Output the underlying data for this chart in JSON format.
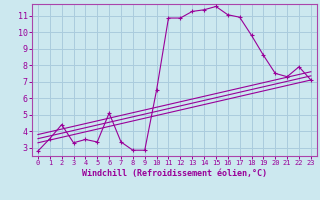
{
  "xlabel": "Windchill (Refroidissement éolien,°C)",
  "bg_color": "#cce8ef",
  "grid_color": "#aaccdd",
  "line_color": "#990099",
  "spine_color": "#aa44aa",
  "xlim": [
    -0.5,
    23.5
  ],
  "ylim": [
    2.5,
    11.7
  ],
  "xticks": [
    0,
    1,
    2,
    3,
    4,
    5,
    6,
    7,
    8,
    9,
    10,
    11,
    12,
    13,
    14,
    15,
    16,
    17,
    18,
    19,
    20,
    21,
    22,
    23
  ],
  "yticks": [
    3,
    4,
    5,
    6,
    7,
    8,
    9,
    10,
    11
  ],
  "curve1_x": [
    0,
    1,
    2,
    3,
    4,
    5,
    6,
    7,
    8,
    9,
    10,
    11,
    12,
    13,
    14,
    15,
    16,
    17,
    18,
    19,
    20,
    21,
    22,
    23
  ],
  "curve1_y": [
    2.8,
    3.55,
    4.4,
    3.3,
    3.5,
    3.35,
    5.1,
    3.35,
    2.85,
    2.85,
    6.5,
    10.85,
    10.85,
    11.25,
    11.35,
    11.55,
    11.05,
    10.9,
    9.8,
    8.6,
    7.5,
    7.3,
    7.9,
    7.1
  ],
  "line2_x": [
    0,
    23
  ],
  "line2_y": [
    3.3,
    7.1
  ],
  "line3_x": [
    0,
    23
  ],
  "line3_y": [
    3.55,
    7.35
  ],
  "line4_x": [
    0,
    23
  ],
  "line4_y": [
    3.8,
    7.6
  ]
}
